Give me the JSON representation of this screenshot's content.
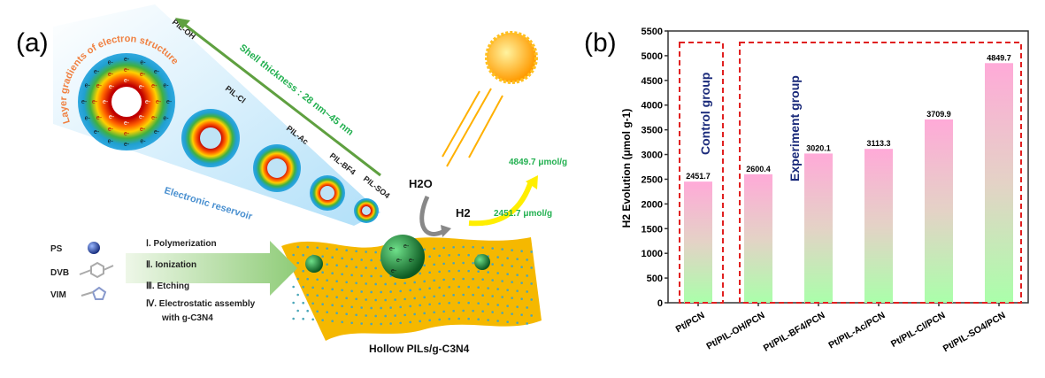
{
  "panel_a": {
    "label": "(a)",
    "gradient_title": "Layer gradients of electron structure",
    "reservoir": "Electronic reservoir",
    "shell": "Shell thickness : 28 nm~45 nm",
    "shells": [
      "PIL-OH",
      "PIL-Cl",
      "PIL-Ac",
      "PIL-BF4",
      "PIL-SO4"
    ],
    "electron": "e-",
    "h2o": "H2O",
    "h2": "H2",
    "high_rate": "4849.7 μmol/g",
    "low_rate": "2451.7 μmol/g",
    "reagents": [
      "PS",
      "DVB",
      "VIM"
    ],
    "steps": [
      "Ⅰ. Polymerization",
      "Ⅱ. Ionization",
      "Ⅲ. Etching",
      "Ⅳ. Electrostatic assembly",
      "with g-C3N4"
    ],
    "product": "Hollow PILs/g-C3N4",
    "colors": {
      "sheet": "#f5b800",
      "arrow": "#6aa84f",
      "sphere": "#1f8a3a",
      "sun": "#ffb000"
    }
  },
  "panel_b": {
    "label": "(b)"
  },
  "chart_data": {
    "type": "bar",
    "categories": [
      "Pt/PCN",
      "Pt/PIL-OH/PCN",
      "Pt/PIL-BF4/PCN",
      "Pt/PIL-Ac/PCN",
      "Pt/PIL-Cl/PCN",
      "Pt/PIL-SO4/PCN"
    ],
    "values": [
      2451.7,
      2600.4,
      3020.1,
      3113.3,
      3709.9,
      4849.7
    ],
    "data_labels": [
      "2451.7",
      "2600.4",
      "3020.1",
      "3113.3",
      "3709.9",
      "4849.7"
    ],
    "ylabel": "H2 Evolution (μmol g-1)",
    "ylim": [
      0,
      5500
    ],
    "yticks": [
      "0",
      "500",
      "1000",
      "1500",
      "2000",
      "2500",
      "3000",
      "3500",
      "4000",
      "4500",
      "5000",
      "5500"
    ],
    "groups": [
      {
        "label": "Control group",
        "categories": [
          "Pt/PCN"
        ]
      },
      {
        "label": "Experiment group",
        "categories": [
          "Pt/PIL-OH/PCN",
          "Pt/PIL-BF4/PCN",
          "Pt/PIL-Ac/PCN",
          "Pt/PIL-Cl/PCN",
          "Pt/PIL-SO4/PCN"
        ]
      }
    ],
    "bar_gradient": {
      "top": "#ffaad8",
      "bottom": "#aaffaa"
    },
    "group_box_color": "#e02020",
    "group_label_color": "#1a2a7a",
    "grid": false
  }
}
